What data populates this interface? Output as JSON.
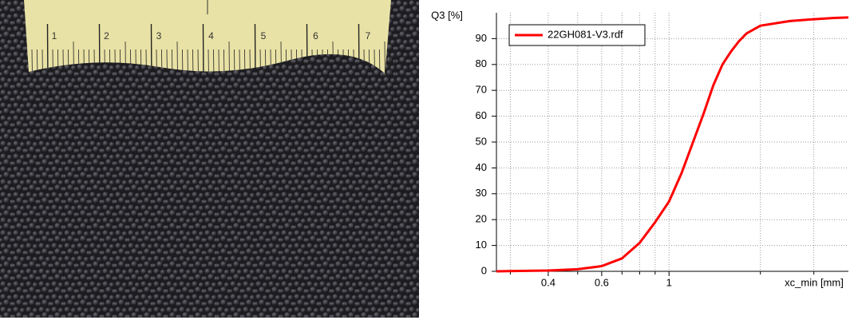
{
  "photo": {
    "ruler_labels": [
      "1",
      "2",
      "3",
      "4",
      "5",
      "6",
      "7"
    ]
  },
  "chart_data": {
    "type": "line",
    "xlabel": "xc_min [mm]",
    "ylabel": "Q3 [%]",
    "xscale": "log",
    "grid": true,
    "legend": "upper left",
    "x": [
      0.27,
      0.4,
      0.5,
      0.6,
      0.7,
      0.8,
      0.9,
      1.0,
      1.1,
      1.2,
      1.3,
      1.4,
      1.5,
      1.6,
      1.7,
      1.8,
      2.0,
      2.5,
      3.0,
      3.5,
      3.9
    ],
    "series": [
      {
        "name": "22GH081-V3.rdf",
        "color": "#ff0000",
        "values": [
          0,
          0.3,
          0.8,
          2,
          5,
          11,
          19,
          27,
          38,
          50,
          61,
          72,
          80,
          85,
          89,
          92,
          95,
          96.8,
          97.5,
          98,
          98.2
        ]
      }
    ],
    "xlim": [
      0.27,
      3.9
    ],
    "ylim": [
      0,
      100
    ],
    "xticks": [
      0.4,
      0.6,
      1
    ],
    "xminorticks": [
      0.3,
      0.5,
      0.7,
      0.8,
      0.9,
      2,
      3
    ],
    "yticks": [
      0,
      10,
      20,
      30,
      40,
      50,
      60,
      70,
      80,
      90
    ]
  }
}
